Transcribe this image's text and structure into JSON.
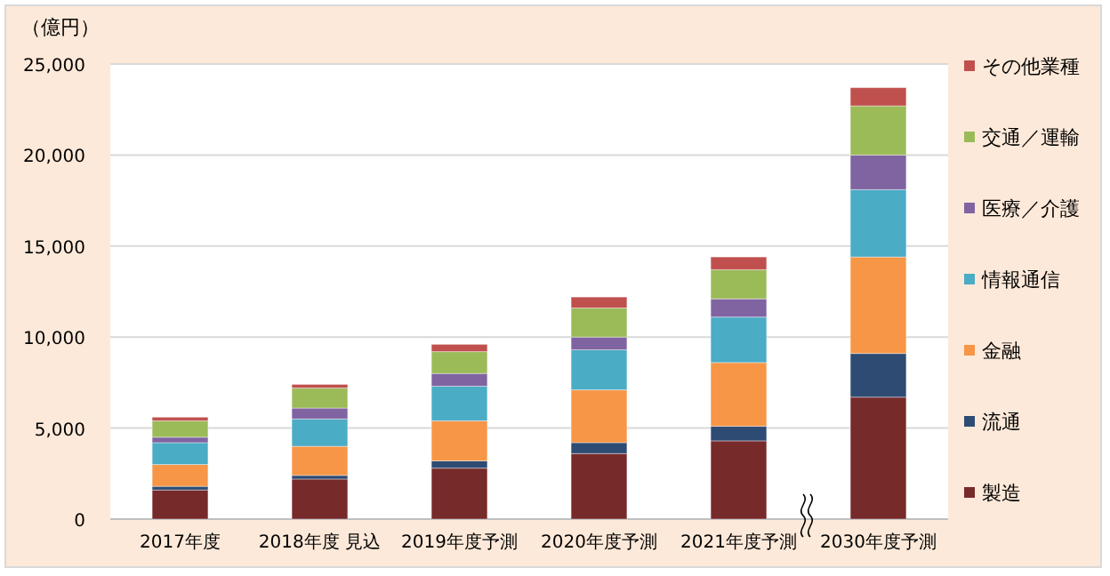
{
  "chart_data": {
    "type": "bar",
    "stacked": true,
    "ylabel": "（億円）",
    "categories": [
      "2017年度",
      "2018年度 見込",
      "2019年度予測",
      "2020年度予測",
      "2021年度予測",
      "2030年度予測"
    ],
    "series": [
      {
        "name": "製造",
        "color": "#772a2a",
        "values": [
          1600,
          2200,
          2800,
          3600,
          4300,
          6700
        ]
      },
      {
        "name": "流通",
        "color": "#2e4b73",
        "values": [
          200,
          200,
          400,
          600,
          800,
          2400
        ]
      },
      {
        "name": "金融",
        "color": "#f79646",
        "values": [
          1200,
          1600,
          2200,
          2900,
          3500,
          5300
        ]
      },
      {
        "name": "情報通信",
        "color": "#4bacc6",
        "values": [
          1200,
          1500,
          1900,
          2200,
          2500,
          3700
        ]
      },
      {
        "name": "医療／介護",
        "color": "#8064a2",
        "values": [
          300,
          600,
          700,
          700,
          1000,
          1900
        ]
      },
      {
        "name": "交通／運輸",
        "color": "#9bbb59",
        "values": [
          900,
          1100,
          1200,
          1600,
          1600,
          2700
        ]
      },
      {
        "name": "その他業種",
        "color": "#c0504d",
        "values": [
          200,
          200,
          400,
          600,
          700,
          1000
        ]
      }
    ],
    "ylim": [
      0,
      25000
    ],
    "yticks": [
      {
        "value": 0,
        "label": "0"
      },
      {
        "value": 5000,
        "label": "5,000"
      },
      {
        "value": 10000,
        "label": "10,000"
      },
      {
        "value": 15000,
        "label": "15,000"
      },
      {
        "value": 20000,
        "label": "20,000"
      },
      {
        "value": 25000,
        "label": "25,000"
      }
    ],
    "grid": "y",
    "legend": "right"
  }
}
